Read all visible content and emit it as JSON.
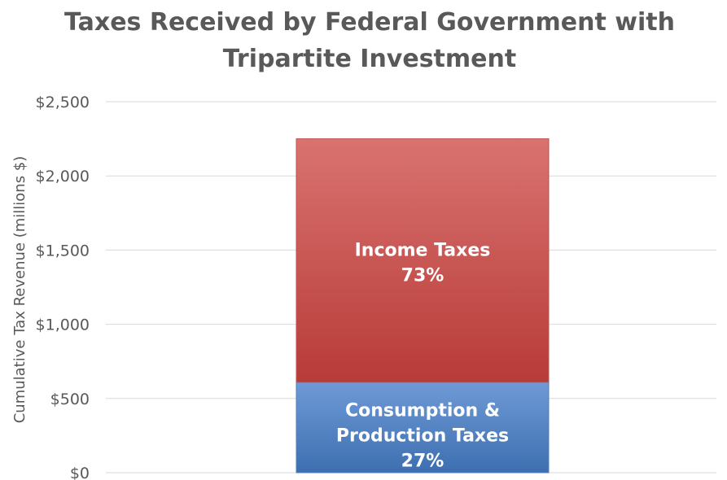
{
  "chart_data": {
    "type": "bar",
    "stacked": true,
    "title_lines": [
      "Taxes Received by Federal Government with",
      "Tripartite Investment"
    ],
    "xlabel": "",
    "ylabel": "Cumulative Tax Revenue (millions $)",
    "ylim": [
      0,
      2500
    ],
    "yticks": [
      0,
      500,
      1000,
      1500,
      2000,
      2500
    ],
    "ytick_labels": [
      "$0",
      "$500",
      "$1,000",
      "$1,500",
      "$2,000",
      "$2,500"
    ],
    "grid": true,
    "categories": [
      ""
    ],
    "series": [
      {
        "values": [
          610
        ],
        "color": "#4f81bd",
        "label_lines": [
          "Consumption &",
          "Production Taxes",
          "27%"
        ]
      },
      {
        "values": [
          1640
        ],
        "color": "#c0504d",
        "label_lines": [
          "Income Taxes",
          "73%"
        ]
      }
    ]
  }
}
